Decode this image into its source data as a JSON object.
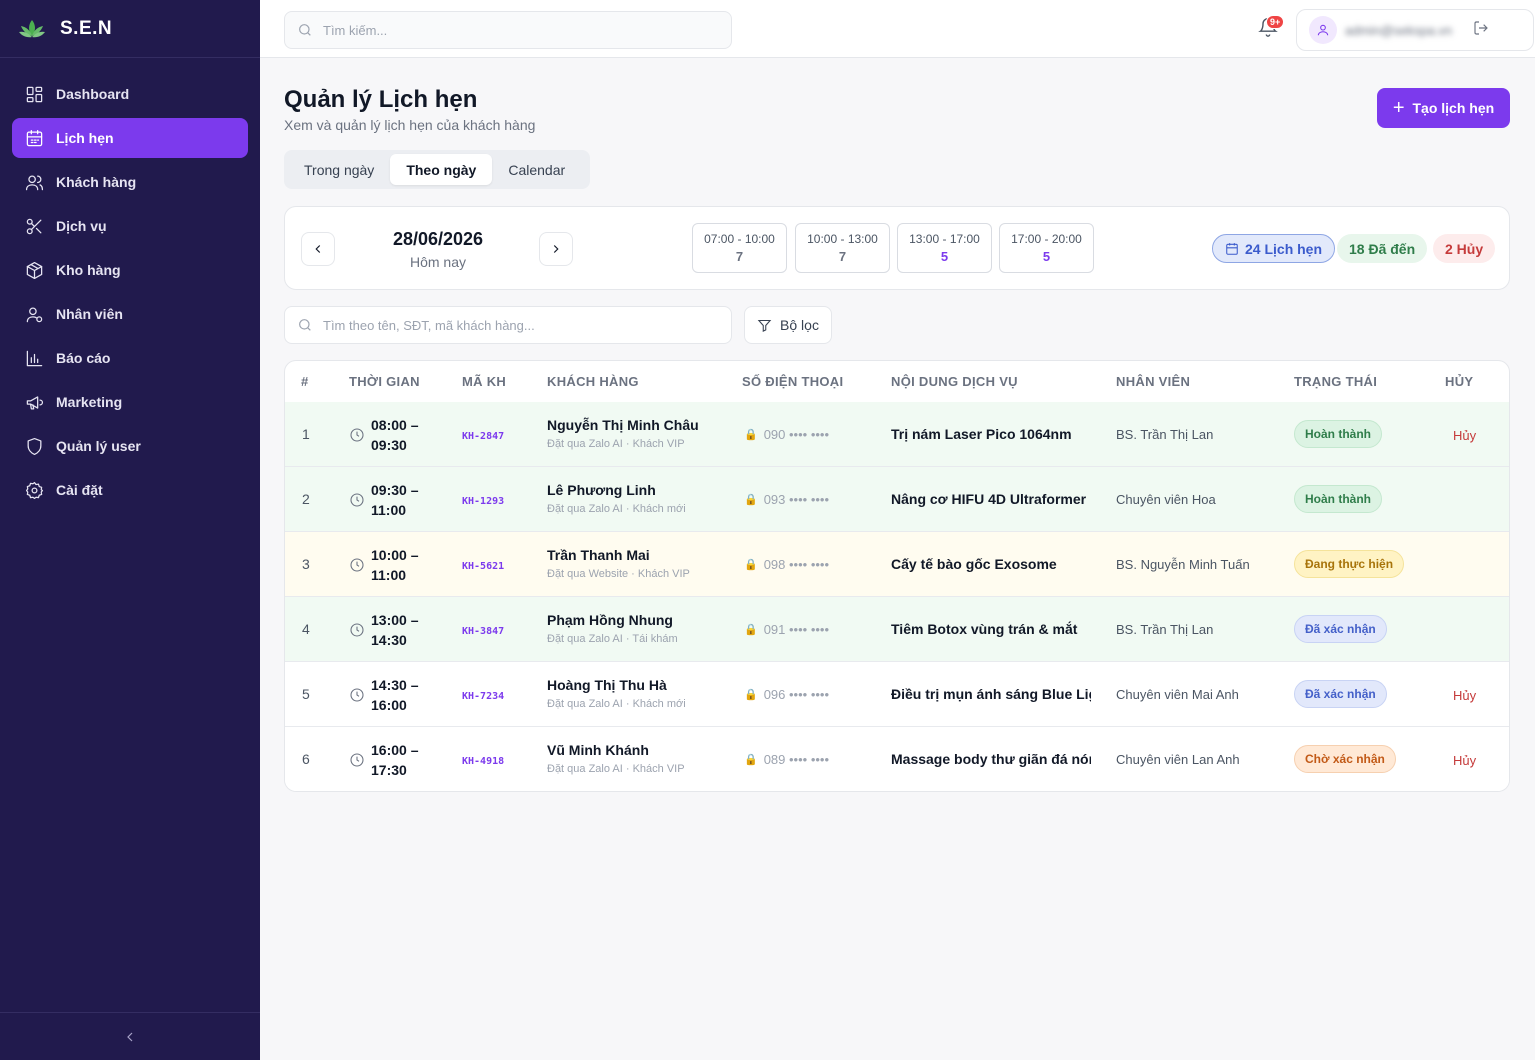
{
  "brand": {
    "name": "S.E.N"
  },
  "sidebar": {
    "items": [
      {
        "label": "Dashboard",
        "icon": "grid-icon"
      },
      {
        "label": "Lịch hẹn",
        "icon": "calendar-icon",
        "active": true
      },
      {
        "label": "Khách hàng",
        "icon": "users-icon"
      },
      {
        "label": "Dịch vụ",
        "icon": "scissors-icon"
      },
      {
        "label": "Kho hàng",
        "icon": "box-icon"
      },
      {
        "label": "Nhân viên",
        "icon": "user-check-icon"
      },
      {
        "label": "Báo cáo",
        "icon": "bar-chart-icon"
      },
      {
        "label": "Marketing",
        "icon": "megaphone-icon"
      },
      {
        "label": "Quản lý user",
        "icon": "shield-icon"
      },
      {
        "label": "Cài đặt",
        "icon": "gear-icon"
      }
    ]
  },
  "topbar": {
    "search_placeholder": "Tìm kiếm...",
    "notification_badge": "9+",
    "user_email": "admin@sekspa.vn"
  },
  "header": {
    "title": "Quản lý Lịch hẹn",
    "subtitle": "Xem và quản lý lịch hẹn của khách hàng",
    "create_button": "Tạo lịch hẹn"
  },
  "tabs": [
    "Trong ngày",
    "Theo ngày",
    "Calendar"
  ],
  "active_tab": "Theo ngày",
  "date_bar": {
    "date": "28/06/2026",
    "date_label": "Hôm nay",
    "slots": [
      {
        "range": "07:00 - 10:00",
        "count": "7"
      },
      {
        "range": "10:00 - 13:00",
        "count": "7"
      },
      {
        "range": "13:00 - 17:00",
        "count": "5"
      },
      {
        "range": "17:00 - 20:00",
        "count": "5"
      }
    ],
    "total": "24 Lịch hẹn",
    "arrived": "18 Đã đến",
    "cancelled": "2 Hủy"
  },
  "list": {
    "search_placeholder": "Tìm theo tên, SĐT, mã khách hàng...",
    "filter_label": "Bộ lọc"
  },
  "table": {
    "headers": [
      "#",
      "THỜI GIAN",
      "MÃ KH",
      "KHÁCH HÀNG",
      "SỐ ĐIỆN THOẠI",
      "NỘI DUNG DỊCH VỤ",
      "NHÂN VIÊN",
      "TRẠNG THÁI",
      "HỦY"
    ],
    "rows": [
      {
        "num": "1",
        "start": "08:00 –",
        "end": "09:30",
        "code": "KH-2847",
        "name": "Nguyễn Thị Minh Châu",
        "sub": "Đặt qua Zalo AI · Khách VIP",
        "phone": "090 •••• ••••",
        "service": "Trị nám Laser Pico 1064nm",
        "staff": "BS. Trần Thị Lan",
        "status": "Hoàn thành",
        "cancel": "Hủy"
      },
      {
        "num": "2",
        "start": "09:30 –",
        "end": "11:00",
        "code": "KH-1293",
        "name": "Lê Phương Linh",
        "sub": "Đặt qua Zalo AI · Khách mới",
        "phone": "093 •••• ••••",
        "service": "Nâng cơ HIFU 4D Ultraformer",
        "staff": "Chuyên viên Hoa",
        "status": "Hoàn thành",
        "cancel": ""
      },
      {
        "num": "3",
        "start": "10:00 –",
        "end": "11:00",
        "code": "KH-5621",
        "name": "Trần Thanh Mai",
        "sub": "Đặt qua Website · Khách VIP",
        "phone": "098 •••• ••••",
        "service": "Cấy tế bào gốc Exosome",
        "staff": "BS. Nguyễn Minh Tuấn",
        "status": "Đang thực hiện",
        "cancel": ""
      },
      {
        "num": "4",
        "start": "13:00 –",
        "end": "14:30",
        "code": "KH-3847",
        "name": "Phạm Hồng Nhung",
        "sub": "Đặt qua Zalo AI · Tái khám",
        "phone": "091 •••• ••••",
        "service": "Tiêm Botox vùng trán & mắt",
        "staff": "BS. Trần Thị Lan",
        "status": "Đã xác nhận",
        "cancel": ""
      },
      {
        "num": "5",
        "start": "14:30 –",
        "end": "16:00",
        "code": "KH-7234",
        "name": "Hoàng Thị Thu Hà",
        "sub": "Đặt qua Zalo AI · Khách mới",
        "phone": "096 •••• ••••",
        "service": "Điều trị mụn ánh sáng Blue Lig...",
        "staff": "Chuyên viên Mai Anh",
        "status": "Đã xác nhận",
        "cancel": "Hủy"
      },
      {
        "num": "6",
        "start": "16:00 –",
        "end": "17:30",
        "code": "KH-4918",
        "name": "Vũ Minh Khánh",
        "sub": "Đặt qua Zalo AI · Khách VIP",
        "phone": "089 •••• ••••",
        "service": "Massage body thư giãn đá nóng",
        "staff": "Chuyên viên Lan Anh",
        "status": "Chờ xác nhận",
        "cancel": "Hủy"
      }
    ]
  },
  "colors": {
    "sidebar_bg": "#211a4d",
    "accent": "#7c3aed"
  }
}
